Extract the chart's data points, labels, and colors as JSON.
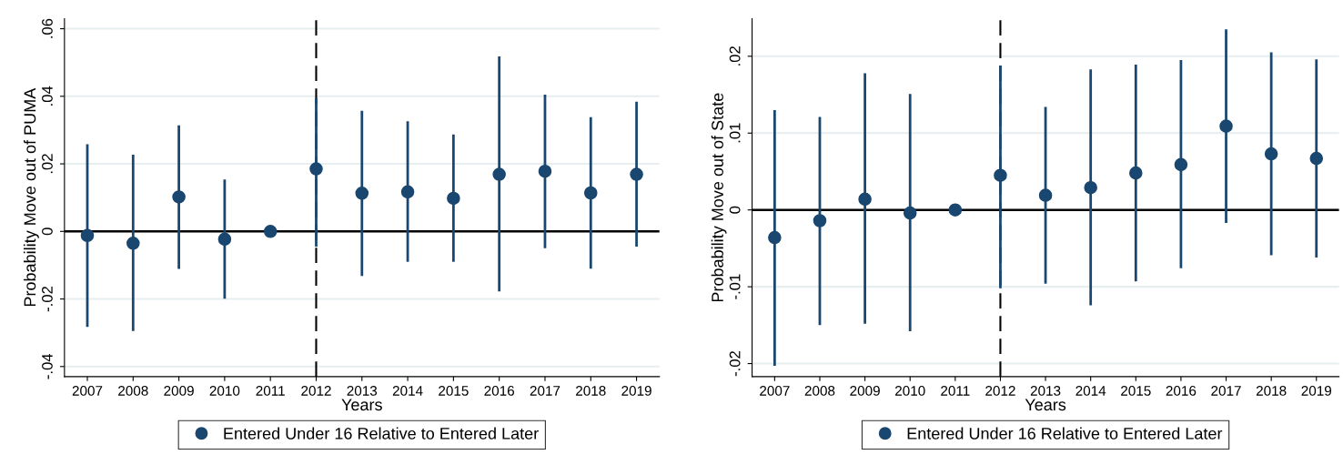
{
  "chart_data": [
    {
      "type": "scatter",
      "xlabel": "Years",
      "ylabel": "Probability Move out of PUMA",
      "categories": [
        "2007",
        "2008",
        "2009",
        "2010",
        "2011",
        "2012",
        "2013",
        "2014",
        "2015",
        "2016",
        "2017",
        "2018",
        "2019"
      ],
      "series": [
        {
          "name": "Entered Under 16 Relative to Entered Later",
          "color": "#1a476f",
          "values": [
            -0.0012,
            -0.0035,
            0.0102,
            -0.0023,
            0,
            0.0185,
            0.0113,
            0.0117,
            0.0098,
            0.0169,
            0.0178,
            0.0114,
            0.0169
          ],
          "errors": [
            [
              -0.0283,
              0.0258
            ],
            [
              -0.0295,
              0.0227
            ],
            [
              -0.0111,
              0.0314
            ],
            [
              -0.0199,
              0.0154
            ],
            null,
            [
              -0.0045,
              0.0395
            ],
            [
              -0.0132,
              0.0357
            ],
            [
              -0.009,
              0.0326
            ],
            [
              -0.009,
              0.0287
            ],
            [
              -0.0178,
              0.0518
            ],
            [
              -0.005,
              0.0405
            ],
            [
              -0.011,
              0.0338
            ],
            [
              -0.0045,
              0.0384
            ]
          ]
        }
      ],
      "ylim": [
        -0.043,
        0.063
      ],
      "yticks": [
        {
          "value": -0.04,
          "label": "-.04"
        },
        {
          "value": -0.02,
          "label": "-.02"
        },
        0,
        {
          "value": 0.02,
          "label": ".02"
        },
        {
          "value": 0.04,
          "label": ".04"
        },
        {
          "value": 0.06,
          "label": ".06"
        }
      ],
      "ref_lines": [
        {
          "axis": "y",
          "value": 0,
          "color": "#000000",
          "line_style": "solid"
        },
        {
          "axis": "x",
          "value": "2012",
          "color": "#000000",
          "line_style": "dashed"
        }
      ],
      "grid": "y",
      "legend": "bottom",
      "marker": "circle"
    },
    {
      "type": "scatter",
      "xlabel": "Years",
      "ylabel": "Probability Move out of State",
      "categories": [
        "2007",
        "2008",
        "2009",
        "2010",
        "2011",
        "2012",
        "2013",
        "2014",
        "2015",
        "2016",
        "2017",
        "2018",
        "2019"
      ],
      "series": [
        {
          "name": "Entered Under 16 Relative to Entered Later",
          "color": "#1a476f",
          "values": [
            -0.0036,
            -0.0014,
            0.0014,
            -0.0004,
            0,
            0.0045,
            0.0019,
            0.0029,
            0.0048,
            0.0059,
            0.0109,
            0.0073,
            0.0067
          ],
          "errors": [
            [
              -0.0203,
              0.013
            ],
            [
              -0.015,
              0.0121
            ],
            [
              -0.0148,
              0.0178
            ],
            [
              -0.0158,
              0.0151
            ],
            null,
            [
              -0.0102,
              0.0188
            ],
            [
              -0.0096,
              0.0134
            ],
            [
              -0.0124,
              0.0183
            ],
            [
              -0.0093,
              0.0189
            ],
            [
              -0.0076,
              0.0195
            ],
            [
              -0.0017,
              0.0235
            ],
            [
              -0.0059,
              0.0205
            ],
            [
              -0.0062,
              0.0196
            ]
          ]
        }
      ],
      "ylim": [
        -0.0217,
        0.0249
      ],
      "yticks": [
        {
          "value": -0.02,
          "label": "-.02"
        },
        {
          "value": -0.01,
          "label": "-.01"
        },
        0,
        {
          "value": 0.01,
          "label": ".01"
        },
        {
          "value": 0.02,
          "label": ".02"
        }
      ],
      "ref_lines": [
        {
          "axis": "y",
          "value": 0,
          "color": "#000000",
          "line_style": "solid"
        },
        {
          "axis": "x",
          "value": "2012",
          "color": "#000000",
          "line_style": "dashed"
        }
      ],
      "grid": "y",
      "legend": "bottom",
      "marker": "circle"
    }
  ]
}
